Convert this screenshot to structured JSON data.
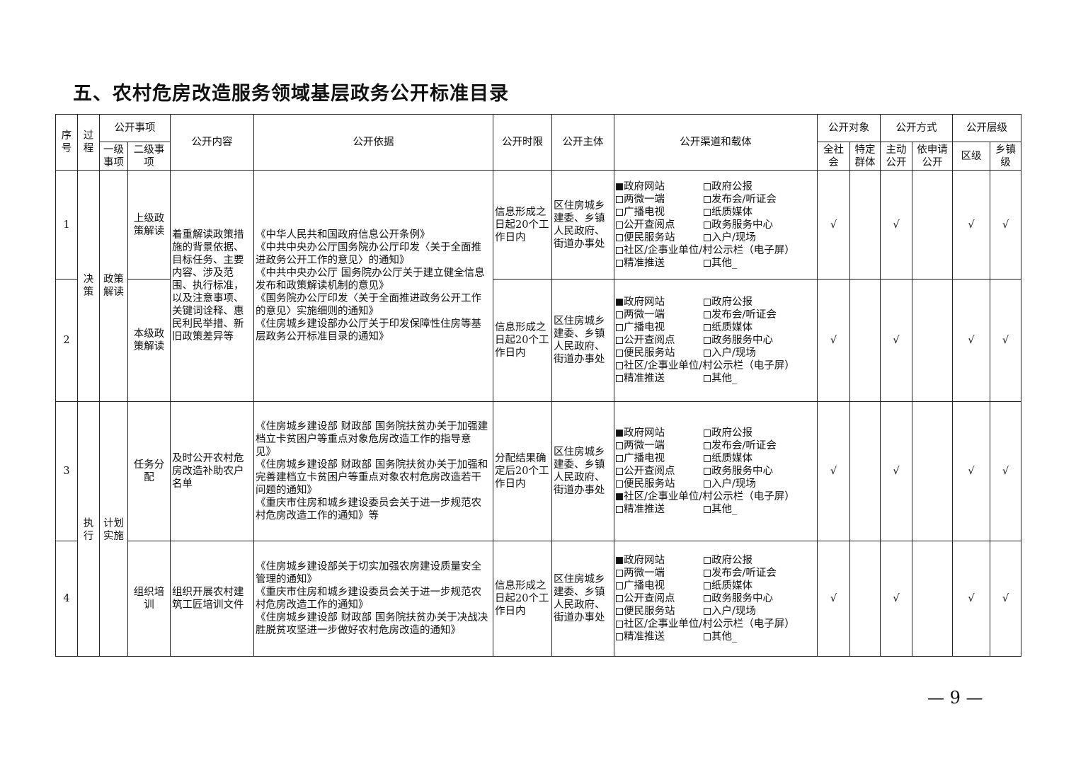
{
  "title": "五、农村危房改造服务领域基层政务公开标准目录",
  "headers": {
    "seq": "序号",
    "process": "过程",
    "matter": "公开事项",
    "level1": "一级事项",
    "level2": "二级事项",
    "content": "公开内容",
    "basis": "公开依据",
    "time": "公开时限",
    "subject": "公开主体",
    "channel": "公开渠道和载体",
    "object": "公开对象",
    "object_all": "全社会",
    "object_specific": "特定群体",
    "method": "公开方式",
    "method_active": "主动公开",
    "method_apply": "依申请公开",
    "level": "公开层级",
    "level_district": "区级",
    "level_town": "乡镇级"
  },
  "check": "√",
  "channel_labels": [
    "政府网站",
    "政府公报",
    "两微一端",
    "发布会/听证会",
    "广播电视",
    "纸质媒体",
    "公开查阅点",
    "政务服务中心",
    "便民服务站",
    "入户/现场",
    "社区/企事业单位/村公示栏（电子屏）",
    "精准推送",
    "其他_"
  ],
  "rows": [
    {
      "seq": "1",
      "process": "决策",
      "level1": "政策解读",
      "level2": "上级政策解读",
      "content": "着重解读政策措施的背景依据、目标任务、主要内容、涉及范围、执行标准，以及注意事项、关键词诠释、惠民利民举措、新旧政策差异等",
      "basis": "《中华人民共和国政府信息公开条例》\n《中共中央办公厅国务院办公厅印发〈关于全面推进政务公开工作的意见〉的通知》\n《中共中央办公厅 国务院办公厅关于建立健全信息发布和政策解读机制的意见》\n《国务院办公厅印发〈关于全面推进政务公开工作的意见〉实施细则的通知》\n《住房城乡建设部办公厅关于印发保障性住房等基层政务公开标准目录的通知》",
      "time": "信息形成之日起20个工作日内",
      "subject": "区住房城乡建委、乡镇人民政府、街道办事处",
      "checked": [
        0
      ]
    },
    {
      "seq": "2",
      "level2": "本级政策解读",
      "time": "信息形成之日起20个工作日内",
      "subject": "区住房城乡建委、乡镇人民政府、街道办事处",
      "checked": [
        0
      ]
    },
    {
      "seq": "3",
      "process": "执行",
      "level1": "计划实施",
      "level2": "任务分配",
      "content": "及时公开农村危房改造补助农户名单",
      "basis": "《住房城乡建设部 财政部 国务院扶贫办关于加强建档立卡贫困户等重点对象危房改造工作的指导意见》\n《住房城乡建设部 财政部 国务院扶贫办关于加强和完善建档立卡贫困户等重点对象农村危房改造若干问题的通知》\n《重庆市住房和城乡建设委员会关于进一步规范农村危房改造工作的通知》等",
      "time": "分配结果确定后20个工作日内",
      "subject": "区住房城乡建委、乡镇人民政府、街道办事处",
      "checked": [
        0,
        10
      ]
    },
    {
      "seq": "4",
      "level2": "组织培训",
      "content": "组织开展农村建筑工匠培训文件",
      "basis": "《住房城乡建设部关于切实加强农房建设质量安全管理的通知》\n《重庆市住房和城乡建设委员会关于进一步规范农村危房改造工作的通知》\n《住房城乡建设部 财政部 国务院扶贫办关于决战决胜脱贫攻坚进一步做好农村危房改造的通知》",
      "time": "信息形成之日起20个工作日内",
      "subject": "区住房城乡建委、乡镇人民政府、街道办事处",
      "checked": [
        0
      ]
    }
  ],
  "page_number": "— 9 —"
}
